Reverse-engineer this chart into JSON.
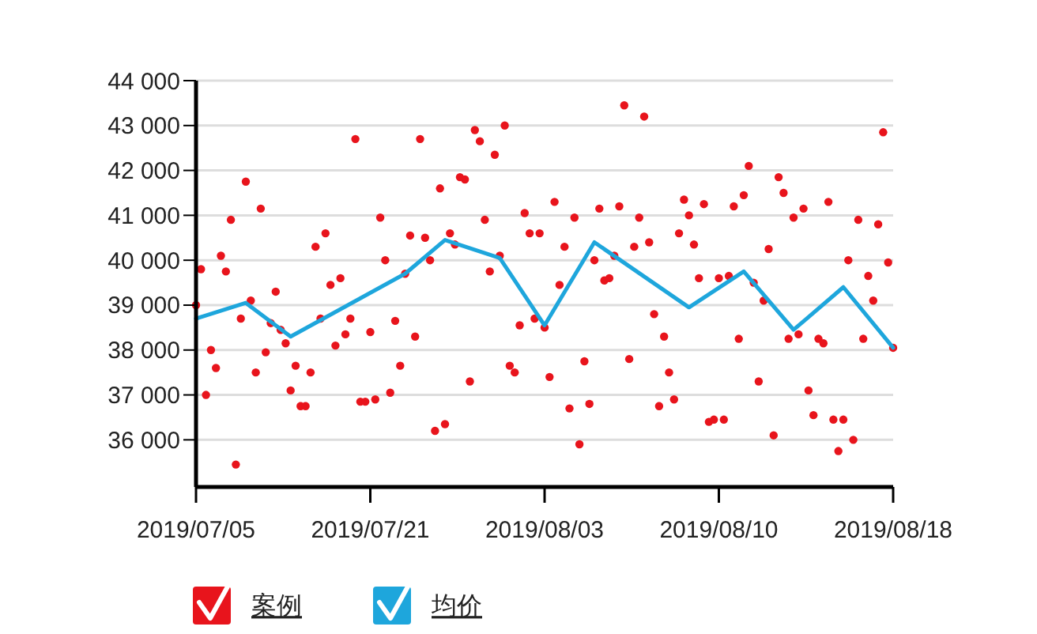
{
  "chart_data": {
    "type": "scatter",
    "categories": [
      "2019/07/05",
      null,
      null,
      null,
      null,
      null,
      null,
      null,
      null,
      null,
      null,
      null,
      null,
      null,
      null,
      null,
      null,
      null,
      null,
      null,
      null,
      null,
      null,
      null,
      null,
      null,
      null,
      null,
      null,
      null,
      null,
      null,
      null,
      null,
      null,
      "2019/07/21",
      null,
      null,
      null,
      null,
      null,
      null,
      null,
      null,
      null,
      null,
      null,
      null,
      null,
      null,
      null,
      null,
      null,
      null,
      null,
      null,
      null,
      null,
      null,
      null,
      null,
      null,
      null,
      null,
      null,
      null,
      null,
      null,
      null,
      null,
      "2019/08/03",
      null,
      null,
      null,
      null,
      null,
      null,
      null,
      null,
      null,
      null,
      null,
      null,
      null,
      null,
      null,
      null,
      null,
      null,
      null,
      null,
      null,
      null,
      null,
      null,
      null,
      null,
      null,
      null,
      null,
      null,
      null,
      null,
      null,
      null,
      "2019/08/10",
      null,
      null,
      null,
      null,
      null,
      null,
      null,
      null,
      null,
      null,
      null,
      null,
      null,
      null,
      null,
      null,
      null,
      null,
      null,
      null,
      null,
      null,
      null,
      null,
      null,
      null,
      null,
      null,
      null,
      null,
      null,
      null,
      null,
      null,
      "2019/08/18"
    ],
    "ylim": [
      34950,
      44000
    ],
    "yticks": [
      {
        "value": 36000,
        "label": "36 000"
      },
      {
        "value": 37000,
        "label": "37 000"
      },
      {
        "value": 38000,
        "label": "38 000"
      },
      {
        "value": 39000,
        "label": "39 000"
      },
      {
        "value": 40000,
        "label": "40 000"
      },
      {
        "value": 41000,
        "label": "41 000"
      },
      {
        "value": 42000,
        "label": "42 000"
      },
      {
        "value": 43000,
        "label": "43 000"
      },
      {
        "value": 44000,
        "label": "44 000"
      }
    ],
    "grid": "y",
    "legend": "bottom left",
    "series": [
      {
        "name": "案例",
        "marker": "circle",
        "color": "#e8141c",
        "values": [
          39000,
          39800,
          37000,
          38000,
          37600,
          40100,
          39750,
          40900,
          35450,
          38700,
          41750,
          39100,
          37500,
          41150,
          37950,
          38600,
          39300,
          38450,
          38150,
          37100,
          37650,
          36750,
          36750,
          37500,
          40300,
          38700,
          40600,
          39450,
          38100,
          39600,
          38350,
          38700,
          42700,
          36850,
          36850,
          38400,
          36900,
          40950,
          40000,
          37050,
          38650,
          37650,
          39700,
          40550,
          38300,
          42700,
          40500,
          40000,
          36200,
          41600,
          36350,
          40600,
          40350,
          41850,
          41800,
          37300,
          42900,
          42650,
          40900,
          39750,
          42350,
          40100,
          43000,
          37650,
          37500,
          38550,
          41050,
          40600,
          38700,
          40600,
          38500,
          37400,
          41300,
          39450,
          40300,
          36700,
          40950,
          35900,
          37750,
          36800,
          40000,
          41150,
          39550,
          39600,
          40100,
          41200,
          43450,
          37800,
          40300,
          40950,
          43200,
          40400,
          38800,
          36750,
          38300,
          37500,
          36900,
          40600,
          41350,
          41000,
          40350,
          39600,
          41250,
          36400,
          36450,
          39600,
          36450,
          39650,
          41200,
          38250,
          41450,
          42100,
          39500,
          37300,
          39100,
          40250,
          36100,
          41850,
          41500,
          38250,
          40950,
          38350,
          41150,
          37100,
          36550,
          38250,
          38150,
          41300,
          36450,
          35750,
          36450,
          40000,
          36000,
          40900,
          38250,
          39650,
          39100,
          40800,
          42850,
          39950,
          38050
        ]
      },
      {
        "name": "均价",
        "type": "line",
        "marker": "none",
        "color": "#1ea6dc",
        "values": [
          38700,
          null,
          null,
          null,
          null,
          null,
          null,
          null,
          null,
          null,
          39050,
          null,
          null,
          null,
          null,
          null,
          null,
          null,
          null,
          38300,
          null,
          null,
          null,
          null,
          null,
          null,
          null,
          null,
          null,
          null,
          null,
          null,
          null,
          null,
          null,
          null,
          null,
          null,
          null,
          null,
          null,
          null,
          39700,
          null,
          null,
          null,
          null,
          null,
          null,
          null,
          40450,
          null,
          null,
          null,
          null,
          null,
          null,
          null,
          null,
          null,
          null,
          40050,
          null,
          null,
          null,
          null,
          null,
          null,
          null,
          null,
          38550,
          null,
          null,
          null,
          null,
          null,
          null,
          null,
          null,
          null,
          40400,
          null,
          null,
          null,
          null,
          null,
          null,
          null,
          null,
          null,
          null,
          null,
          null,
          null,
          null,
          null,
          null,
          null,
          null,
          38950,
          null,
          null,
          null,
          null,
          null,
          null,
          null,
          null,
          null,
          null,
          39750,
          null,
          null,
          null,
          null,
          null,
          null,
          null,
          null,
          null,
          38450,
          null,
          null,
          null,
          null,
          null,
          null,
          null,
          null,
          null,
          39400,
          null,
          null,
          null,
          null,
          null,
          null,
          null,
          null,
          null,
          38050
        ]
      }
    ]
  }
}
